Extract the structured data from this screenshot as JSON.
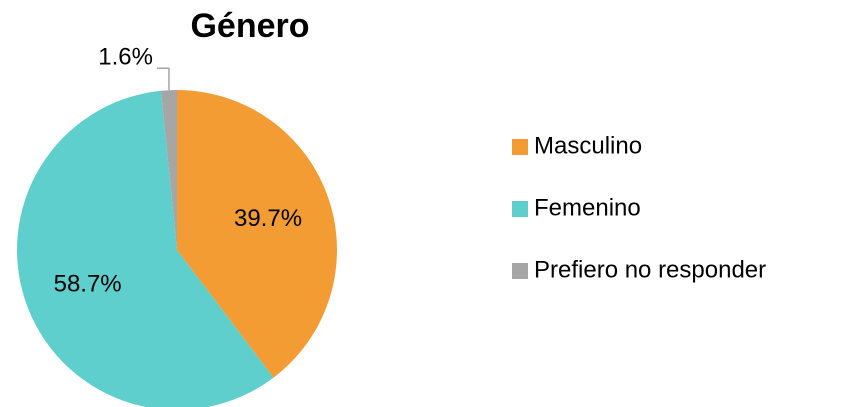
{
  "chart_data": {
    "type": "pie",
    "title": "Género",
    "categories": [
      "Masculino",
      "Femenino",
      "Prefiero no responder"
    ],
    "values": [
      39.7,
      58.7,
      1.6
    ],
    "value_labels": [
      "39.7%",
      "58.7%",
      "1.6%"
    ],
    "colors": [
      "#f39c34",
      "#5ecfcc",
      "#a6a6a6"
    ],
    "legend": "right"
  }
}
